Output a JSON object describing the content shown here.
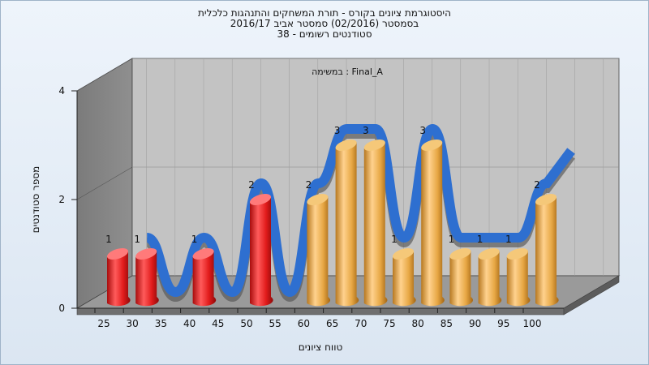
{
  "title_lines": [
    "היסטוגרמת ציונים בקורס - תורת המשחקים והתנהגות כלכלית",
    "בסמסטר (02/2016) סמסטר אביב 2016/17",
    "סטודנטים רשומים - 38"
  ],
  "chart_data": {
    "type": "bar",
    "subtitle": "במשימה : Final_A",
    "xlabel": "טווח ציונים",
    "ylabel": "מספר סטודנטים",
    "categories": [
      "25",
      "30",
      "35",
      "40",
      "45",
      "50",
      "55",
      "60",
      "65",
      "70",
      "75",
      "80",
      "85",
      "90",
      "95",
      "100"
    ],
    "values": [
      1,
      1,
      0,
      1,
      0,
      2,
      0,
      2,
      3,
      3,
      1,
      3,
      1,
      1,
      1,
      2
    ],
    "failing_color": "#e11b1b",
    "passing_color": "#e7a744",
    "failing_through": "55",
    "trend_color": "#2e6fd0",
    "ylim": [
      0,
      4
    ],
    "yticks": [
      0,
      2,
      4
    ],
    "grid": true,
    "style": "3d-cylinders"
  }
}
